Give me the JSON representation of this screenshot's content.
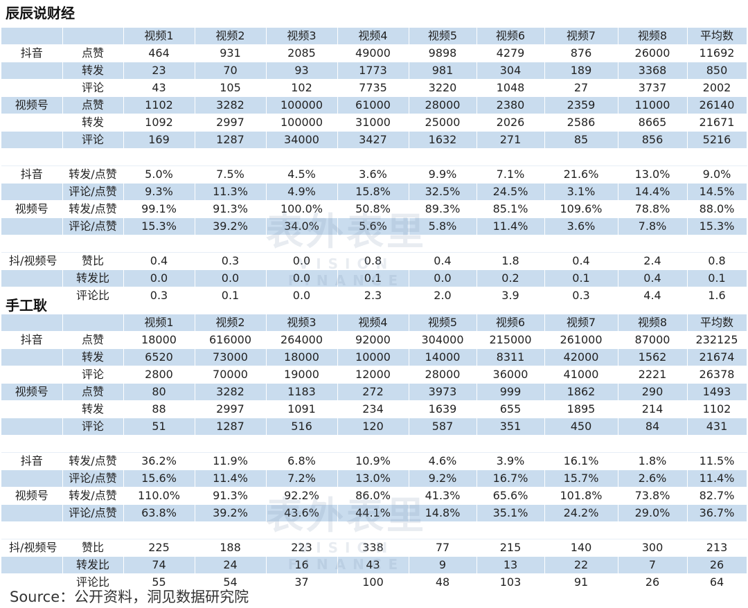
{
  "sections": [
    {
      "title": "辰辰说财经",
      "header": [
        "",
        "",
        "视频1",
        "视频2",
        "视频3",
        "视频4",
        "视频5",
        "视频6",
        "视频7",
        "视频8",
        "平均数"
      ],
      "blocks": [
        {
          "rows": [
            [
              "抖音",
              "点赞",
              "464",
              "931",
              "2085",
              "49000",
              "9898",
              "4279",
              "876",
              "26000",
              "11692"
            ],
            [
              "",
              "转发",
              "23",
              "70",
              "93",
              "1773",
              "981",
              "304",
              "189",
              "3368",
              "850"
            ],
            [
              "",
              "评论",
              "43",
              "105",
              "102",
              "7735",
              "3220",
              "1048",
              "27",
              "3737",
              "2002"
            ],
            [
              "视频号",
              "点赞",
              "1102",
              "3282",
              "100000",
              "61000",
              "28000",
              "2380",
              "2359",
              "11000",
              "26140"
            ],
            [
              "",
              "转发",
              "1092",
              "2997",
              "100000",
              "31000",
              "25000",
              "2026",
              "2586",
              "8665",
              "21671"
            ],
            [
              "",
              "评论",
              "169",
              "1287",
              "34000",
              "3427",
              "1632",
              "271",
              "85",
              "856",
              "5216"
            ]
          ]
        },
        {
          "rows": [
            [
              "抖音",
              "转发/点赞",
              "5.0%",
              "7.5%",
              "4.5%",
              "3.6%",
              "9.9%",
              "7.1%",
              "21.6%",
              "13.0%",
              "9.0%"
            ],
            [
              "",
              "评论/点赞",
              "9.3%",
              "11.3%",
              "4.9%",
              "15.8%",
              "32.5%",
              "24.5%",
              "3.1%",
              "14.4%",
              "14.5%"
            ],
            [
              "视频号",
              "转发/点赞",
              "99.1%",
              "91.3%",
              "100.0%",
              "50.8%",
              "89.3%",
              "85.1%",
              "109.6%",
              "78.8%",
              "88.0%"
            ],
            [
              "",
              "评论/点赞",
              "15.3%",
              "39.2%",
              "34.0%",
              "5.6%",
              "5.8%",
              "11.4%",
              "3.6%",
              "7.8%",
              "15.3%"
            ]
          ]
        },
        {
          "rows": [
            [
              "抖/视频号",
              "赞比",
              "0.4",
              "0.3",
              "0.0",
              "0.8",
              "0.4",
              "1.8",
              "0.4",
              "2.4",
              "0.8"
            ],
            [
              "",
              "转发比",
              "0.0",
              "0.0",
              "0.0",
              "0.1",
              "0.0",
              "0.2",
              "0.1",
              "0.4",
              "0.1"
            ],
            [
              "",
              "评论比",
              "0.3",
              "0.1",
              "0.0",
              "2.3",
              "2.0",
              "3.9",
              "0.3",
              "4.4",
              "1.6"
            ]
          ]
        }
      ]
    },
    {
      "title": "手工耿",
      "header": [
        "",
        "",
        "视频1",
        "视频2",
        "视频3",
        "视频4",
        "视频5",
        "视频6",
        "视频7",
        "视频8",
        "平均数"
      ],
      "blocks": [
        {
          "rows": [
            [
              "抖音",
              "点赞",
              "18000",
              "616000",
              "264000",
              "92000",
              "304000",
              "215000",
              "261000",
              "87000",
              "232125"
            ],
            [
              "",
              "转发",
              "6520",
              "73000",
              "18000",
              "10000",
              "14000",
              "8311",
              "42000",
              "1562",
              "21674"
            ],
            [
              "",
              "评论",
              "2800",
              "70000",
              "19000",
              "12000",
              "28000",
              "36000",
              "41000",
              "2221",
              "26378"
            ],
            [
              "视频号",
              "点赞",
              "80",
              "3282",
              "1183",
              "272",
              "3973",
              "999",
              "1862",
              "290",
              "1493"
            ],
            [
              "",
              "转发",
              "88",
              "2997",
              "1091",
              "234",
              "1639",
              "655",
              "1895",
              "214",
              "1102"
            ],
            [
              "",
              "评论",
              "51",
              "1287",
              "516",
              "120",
              "587",
              "351",
              "450",
              "84",
              "431"
            ]
          ]
        },
        {
          "rows": [
            [
              "抖音",
              "转发/点赞",
              "36.2%",
              "11.9%",
              "6.8%",
              "10.9%",
              "4.6%",
              "3.9%",
              "16.1%",
              "1.8%",
              "11.5%"
            ],
            [
              "",
              "评论/点赞",
              "15.6%",
              "11.4%",
              "7.2%",
              "13.0%",
              "9.2%",
              "16.7%",
              "15.7%",
              "2.6%",
              "11.4%"
            ],
            [
              "视频号",
              "转发/点赞",
              "110.0%",
              "91.3%",
              "92.2%",
              "86.0%",
              "41.3%",
              "65.6%",
              "101.8%",
              "73.8%",
              "82.7%"
            ],
            [
              "",
              "评论/点赞",
              "63.8%",
              "39.2%",
              "43.6%",
              "44.1%",
              "14.8%",
              "35.1%",
              "24.2%",
              "29.0%",
              "36.7%"
            ]
          ]
        },
        {
          "rows": [
            [
              "抖/视频号",
              "赞比",
              "225",
              "188",
              "223",
              "338",
              "77",
              "215",
              "140",
              "300",
              "213"
            ],
            [
              "",
              "转发比",
              "74",
              "24",
              "16",
              "43",
              "9",
              "13",
              "22",
              "7",
              "26"
            ],
            [
              "",
              "评论比",
              "55",
              "54",
              "37",
              "100",
              "48",
              "103",
              "91",
              "26",
              "64"
            ]
          ]
        }
      ]
    }
  ],
  "watermark": {
    "main": "表外表里",
    "sub": "VISION FINANCE"
  },
  "source": "Source：公开资料，洞见数据研究院"
}
